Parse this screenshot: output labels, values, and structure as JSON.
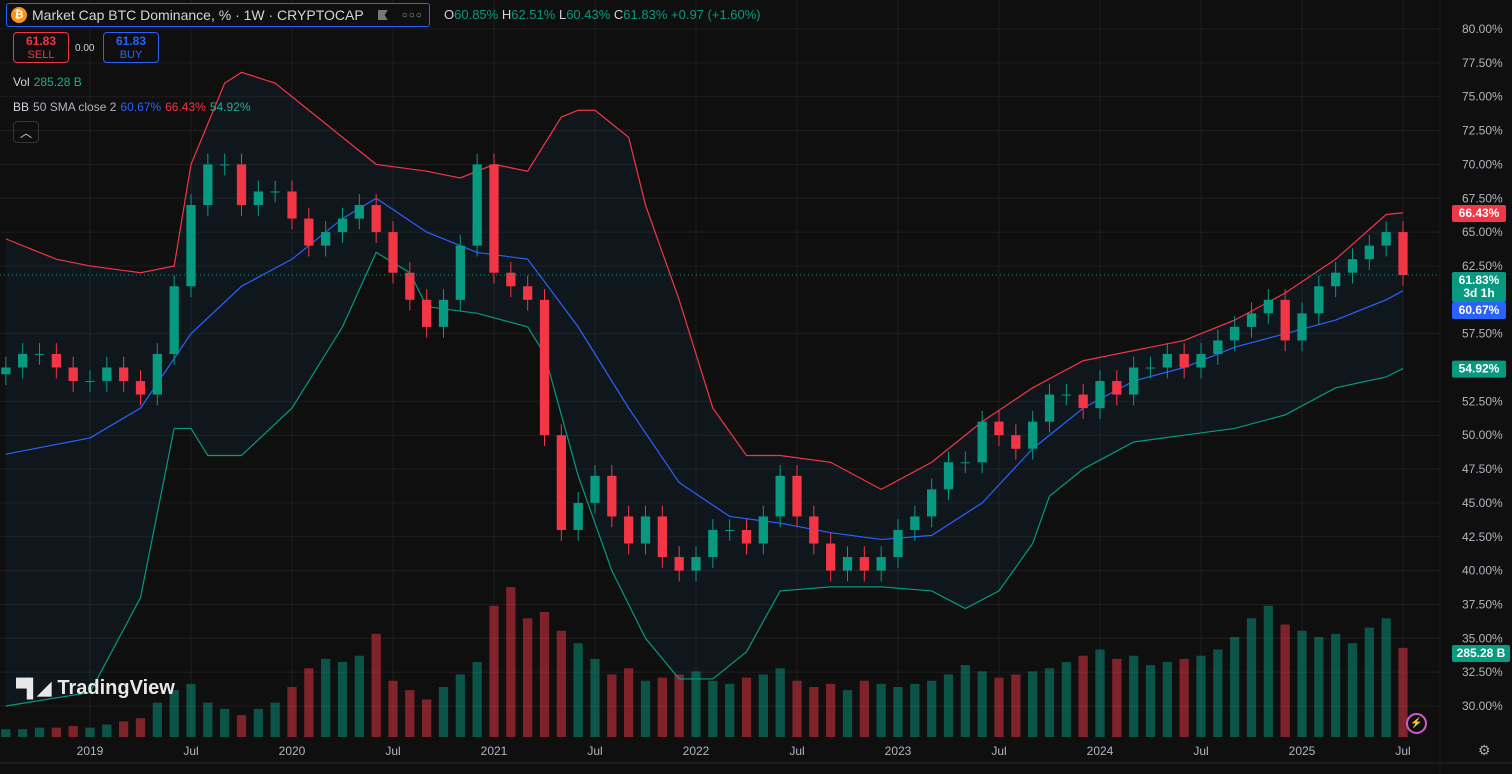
{
  "header": {
    "symbol_title": "Market Cap BTC Dominance, % · 1W · CRYPTOCAP",
    "ohlc": {
      "o_label": "O",
      "o": "60.85%",
      "h_label": "H",
      "h": "62.51%",
      "l_label": "L",
      "l": "60.43%",
      "c_label": "C",
      "c": "61.83%",
      "change": "+0.97 (+1.60%)"
    },
    "sell": {
      "price": "61.83",
      "label": "SELL"
    },
    "spread": "0.00",
    "buy": {
      "price": "61.83",
      "label": "BUY"
    },
    "volume": {
      "label": "Vol",
      "value": "285.28 B"
    },
    "bb": {
      "label": "BB",
      "params": "50 SMA close 2",
      "basis": "60.67%",
      "upper": "66.43%",
      "lower": "54.92%"
    },
    "collapse_icon": "chevron-up-icon"
  },
  "branding": {
    "logo": "TradingView"
  },
  "colors": {
    "up": "#089981",
    "down": "#f23645",
    "basis": "#2962ff",
    "upper": "#f23645",
    "lower": "#089981",
    "background": "#0f0f0f"
  },
  "chart_data": {
    "type": "candlestick",
    "interval": "1W",
    "ylim": [
      28.5,
      81
    ],
    "y_ticks": [
      "80.00%",
      "77.50%",
      "75.00%",
      "72.50%",
      "70.00%",
      "67.50%",
      "65.00%",
      "62.50%",
      "57.50%",
      "52.50%",
      "50.00%",
      "47.50%",
      "45.00%",
      "42.50%",
      "40.00%",
      "37.50%",
      "35.00%",
      "32.50%",
      "30.00%"
    ],
    "y_tick_values": [
      80,
      77.5,
      75,
      72.5,
      70,
      67.5,
      65,
      62.5,
      57.5,
      52.5,
      50,
      47.5,
      45,
      42.5,
      40,
      37.5,
      35,
      32.5,
      30
    ],
    "x_ticks": [
      {
        "label": "2019",
        "date": "2019-01"
      },
      {
        "label": "Jul",
        "date": "2019-07"
      },
      {
        "label": "2020",
        "date": "2020-01"
      },
      {
        "label": "Jul",
        "date": "2020-07"
      },
      {
        "label": "2021",
        "date": "2021-01"
      },
      {
        "label": "Jul",
        "date": "2021-07"
      },
      {
        "label": "2022",
        "date": "2022-01"
      },
      {
        "label": "Jul",
        "date": "2022-07"
      },
      {
        "label": "2023",
        "date": "2023-01"
      },
      {
        "label": "Jul",
        "date": "2023-07"
      },
      {
        "label": "2024",
        "date": "2024-01"
      },
      {
        "label": "Jul",
        "date": "2024-07"
      },
      {
        "label": "2025",
        "date": "2025-01"
      },
      {
        "label": "Jul",
        "date": "2025-07"
      }
    ],
    "start": "2018-08",
    "close": [
      55,
      56,
      56,
      55,
      54,
      54,
      55,
      54,
      53,
      56,
      61,
      67,
      70,
      70,
      67,
      68,
      68,
      66,
      64,
      65,
      66,
      67,
      65,
      62,
      60,
      58,
      60,
      64,
      70,
      62,
      61,
      60,
      50,
      43,
      45,
      47,
      44,
      42,
      44,
      41,
      40,
      41,
      43,
      43,
      42,
      44,
      47,
      44,
      42,
      40,
      41,
      40,
      41,
      43,
      44,
      46,
      48,
      48,
      51,
      50,
      49,
      51,
      53,
      53,
      52,
      54,
      53,
      55,
      55,
      56,
      55,
      56,
      57,
      58,
      59,
      60,
      57,
      59,
      61,
      62,
      63,
      64,
      65,
      61.83
    ],
    "volume_b": [
      25,
      25,
      30,
      30,
      35,
      30,
      40,
      50,
      60,
      110,
      150,
      170,
      110,
      90,
      70,
      90,
      110,
      160,
      220,
      250,
      240,
      260,
      330,
      180,
      150,
      120,
      160,
      200,
      240,
      420,
      480,
      380,
      400,
      340,
      300,
      250,
      200,
      220,
      180,
      190,
      200,
      210,
      180,
      170,
      190,
      200,
      220,
      180,
      160,
      170,
      150,
      180,
      170,
      160,
      170,
      180,
      200,
      230,
      210,
      190,
      200,
      210,
      220,
      240,
      260,
      280,
      250,
      260,
      230,
      240,
      250,
      260,
      280,
      320,
      380,
      420,
      360,
      340,
      320,
      330,
      300,
      350,
      380,
      285.28
    ],
    "bb_basis": [
      [
        "2018-08",
        48.6
      ],
      [
        "2019-01",
        49.8
      ],
      [
        "2019-04",
        52
      ],
      [
        "2019-07",
        57.5
      ],
      [
        "2019-10",
        61
      ],
      [
        "2020-01",
        63
      ],
      [
        "2020-04",
        66
      ],
      [
        "2020-06",
        67.5
      ],
      [
        "2020-09",
        65
      ],
      [
        "2020-12",
        63.5
      ],
      [
        "2021-03",
        63
      ],
      [
        "2021-06",
        58
      ],
      [
        "2021-09",
        52
      ],
      [
        "2021-12",
        46.5
      ],
      [
        "2022-03",
        44
      ],
      [
        "2022-06",
        43.5
      ],
      [
        "2022-09",
        42.8
      ],
      [
        "2022-12",
        42.3
      ],
      [
        "2023-03",
        42.6
      ],
      [
        "2023-06",
        45
      ],
      [
        "2023-09",
        49
      ],
      [
        "2023-12",
        52
      ],
      [
        "2024-03",
        54
      ],
      [
        "2024-06",
        55
      ],
      [
        "2024-09",
        56.5
      ],
      [
        "2024-12",
        57.5
      ],
      [
        "2025-03",
        58.5
      ],
      [
        "2025-06",
        60
      ],
      [
        "2025-07",
        60.67
      ]
    ],
    "bb_upper": [
      [
        "2018-08",
        64.5
      ],
      [
        "2018-11",
        63
      ],
      [
        "2019-01",
        62.5
      ],
      [
        "2019-04",
        62
      ],
      [
        "2019-06",
        62.5
      ],
      [
        "2019-07",
        70
      ],
      [
        "2019-09",
        76
      ],
      [
        "2019-10",
        76.8
      ],
      [
        "2019-12",
        76
      ],
      [
        "2020-03",
        73
      ],
      [
        "2020-06",
        70
      ],
      [
        "2020-09",
        69.5
      ],
      [
        "2020-11",
        69
      ],
      [
        "2021-01",
        70
      ],
      [
        "2021-03",
        69.5
      ],
      [
        "2021-05",
        73.5
      ],
      [
        "2021-06",
        74
      ],
      [
        "2021-07",
        74
      ],
      [
        "2021-09",
        72
      ],
      [
        "2021-10",
        67
      ],
      [
        "2021-12",
        60
      ],
      [
        "2022-02",
        52
      ],
      [
        "2022-04",
        48.5
      ],
      [
        "2022-06",
        48.5
      ],
      [
        "2022-09",
        48
      ],
      [
        "2022-12",
        46
      ],
      [
        "2023-03",
        48
      ],
      [
        "2023-06",
        51
      ],
      [
        "2023-09",
        53.5
      ],
      [
        "2023-12",
        55.5
      ],
      [
        "2024-06",
        57
      ],
      [
        "2024-09",
        58.5
      ],
      [
        "2024-12",
        60.5
      ],
      [
        "2025-03",
        63
      ],
      [
        "2025-06",
        66.3
      ],
      [
        "2025-07",
        66.43
      ]
    ],
    "bb_lower": [
      [
        "2018-08",
        30
      ],
      [
        "2019-01",
        31
      ],
      [
        "2019-04",
        38
      ],
      [
        "2019-06",
        50.5
      ],
      [
        "2019-07",
        50.5
      ],
      [
        "2019-08",
        48.5
      ],
      [
        "2019-10",
        48.5
      ],
      [
        "2020-01",
        52
      ],
      [
        "2020-04",
        58
      ],
      [
        "2020-06",
        63.5
      ],
      [
        "2020-08",
        62
      ],
      [
        "2020-09",
        59.5
      ],
      [
        "2020-12",
        59
      ],
      [
        "2021-03",
        58
      ],
      [
        "2021-04",
        56
      ],
      [
        "2021-06",
        47
      ],
      [
        "2021-08",
        40
      ],
      [
        "2021-10",
        35
      ],
      [
        "2021-12",
        32
      ],
      [
        "2022-02",
        32
      ],
      [
        "2022-04",
        34
      ],
      [
        "2022-06",
        38.5
      ],
      [
        "2022-09",
        38.8
      ],
      [
        "2022-12",
        38.8
      ],
      [
        "2023-03",
        38.5
      ],
      [
        "2023-05",
        37.2
      ],
      [
        "2023-07",
        38.5
      ],
      [
        "2023-09",
        42
      ],
      [
        "2023-10",
        45.5
      ],
      [
        "2023-12",
        47.5
      ],
      [
        "2024-03",
        49.5
      ],
      [
        "2024-06",
        50
      ],
      [
        "2024-09",
        50.5
      ],
      [
        "2024-12",
        51.5
      ],
      [
        "2025-03",
        53.5
      ],
      [
        "2025-06",
        54.3
      ],
      [
        "2025-07",
        54.92
      ]
    ],
    "price_labels": {
      "upper": "66.43%",
      "last": "61.83%",
      "countdown": "3d 1h",
      "basis": "60.67%",
      "lower": "54.92%",
      "volume": "285.28 B"
    },
    "grid": true
  }
}
